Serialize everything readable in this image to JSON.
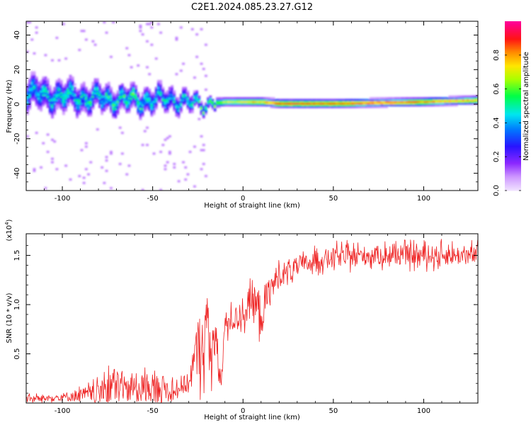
{
  "figure": {
    "title": "C2E1.2024.085.23.27.G12"
  },
  "chart_data": [
    {
      "type": "heatmap",
      "xlabel": "Height of straight line (km)",
      "ylabel": "Frequency (Hz)",
      "xlim": [
        -120,
        130
      ],
      "ylim": [
        -50,
        48
      ],
      "xticks": [
        -100,
        -50,
        0,
        50,
        100
      ],
      "xtick_labels": [
        "-100",
        "-50",
        "0",
        "50",
        "100"
      ],
      "yticks": [
        -40,
        -20,
        0,
        20,
        40
      ],
      "ytick_labels": [
        "-40",
        "-20",
        "0",
        "20",
        "40"
      ],
      "grid": false,
      "colorbar": {
        "label": "Normalized spectral amplitude",
        "range": [
          0,
          1
        ],
        "ticks": [
          0.0,
          0.2,
          0.4,
          0.6,
          0.8
        ],
        "tick_labels": [
          "0.0",
          "0.2",
          "0.4",
          "0.6",
          "0.8"
        ],
        "colormap": "rainbow (violet-blue-cyan-green-yellow-orange-red-magenta)"
      },
      "profile": {
        "description": "peak-frequency centre line and spread vs height",
        "x": [
          -120,
          -100,
          -80,
          -60,
          -50,
          -40,
          -30,
          -20,
          -10,
          0,
          10,
          20,
          50,
          100,
          130
        ],
        "center_hz": [
          6,
          4,
          3,
          2,
          2,
          3,
          0,
          0,
          1,
          1,
          1,
          0,
          0,
          1,
          2
        ],
        "half_width_hz": [
          12,
          11,
          10,
          9,
          9,
          8,
          7,
          4,
          3,
          3,
          3,
          3,
          3,
          3,
          3
        ],
        "peak_amplitude": [
          0.45,
          0.5,
          0.5,
          0.55,
          0.5,
          0.5,
          0.45,
          0.6,
          0.7,
          0.75,
          0.8,
          0.9,
          0.9,
          0.85,
          0.8
        ]
      }
    },
    {
      "type": "line",
      "xlabel": "Height of straight line (km)",
      "ylabel": "SNR (10 * v/v)",
      "multiplier": "(x10^4)",
      "xlim": [
        -120,
        130
      ],
      "ylim": [
        0,
        1.72
      ],
      "xticks": [
        -100,
        -50,
        0,
        50,
        100
      ],
      "xtick_labels": [
        "-100",
        "-50",
        "0",
        "50",
        "100"
      ],
      "yticks": [
        0.5,
        1.0,
        1.5
      ],
      "ytick_labels": [
        "0.5",
        "1.0",
        "1.5"
      ],
      "grid": false,
      "series": [
        {
          "color": "#ee2222",
          "envelope_x": [
            -120,
            -100,
            -80,
            -75,
            -60,
            -50,
            -40,
            -30,
            -25,
            -20,
            -15,
            -12,
            -10,
            -5,
            0,
            5,
            10,
            15,
            20,
            30,
            40,
            50,
            70,
            90,
            110,
            130
          ],
          "envelope_mean": [
            0.04,
            0.06,
            0.1,
            0.18,
            0.16,
            0.15,
            0.14,
            0.2,
            0.55,
            0.7,
            0.55,
            0.2,
            0.8,
            0.85,
            0.9,
            1.05,
            0.9,
            1.15,
            1.3,
            1.38,
            1.45,
            1.48,
            1.5,
            1.5,
            1.5,
            1.5
          ],
          "envelope_noise": [
            0.04,
            0.05,
            0.12,
            0.25,
            0.18,
            0.2,
            0.15,
            0.12,
            0.4,
            0.45,
            0.35,
            0.1,
            0.15,
            0.15,
            0.15,
            0.25,
            0.3,
            0.2,
            0.15,
            0.12,
            0.12,
            0.12,
            0.12,
            0.12,
            0.12,
            0.12
          ]
        }
      ]
    }
  ]
}
